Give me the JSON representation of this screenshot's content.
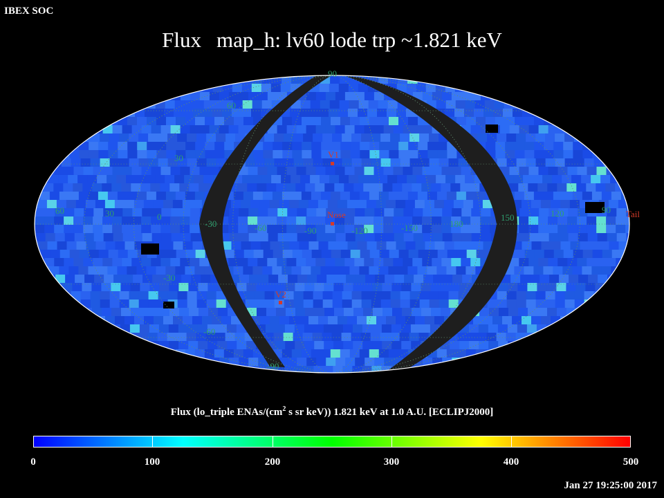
{
  "header": {
    "corner_label": "IBEX SOC",
    "title_part1": "Flux",
    "title_part2": "map_h: lv60 lode trp ~1.821 keV"
  },
  "map": {
    "projection": "Mollweide (ecliptic J2000)",
    "longitude_labels": [
      "60",
      "30",
      "0",
      "-30",
      "-60",
      "-90",
      "-120",
      "-150",
      "180",
      "150",
      "120",
      "90"
    ],
    "latitude_labels": [
      "90",
      "60",
      "30",
      "-30",
      "-60",
      "-90"
    ],
    "markers": [
      {
        "name": "V1",
        "color": "#d43a2a"
      },
      {
        "name": "Nose",
        "color": "#d43a2a"
      },
      {
        "name": "V2",
        "color": "#d43a2a"
      },
      {
        "name": "Tail",
        "color": "#d43a2a"
      }
    ],
    "no_data_color": "#1e1e1e",
    "grid_color": "#5f8f6f"
  },
  "colorbar": {
    "title_pre": "Flux (lo_triple ENAs/(cm",
    "title_sup": "2",
    "title_post": " s sr keV))  1.821 keV at 1.0 A.U. [ECLIPJ2000]",
    "ticks": [
      "0",
      "100",
      "200",
      "300",
      "400",
      "500"
    ],
    "range": [
      0,
      500
    ],
    "colors": [
      "#0000ff",
      "#00ffff",
      "#00ff00",
      "#ffff00",
      "#ff0000"
    ]
  },
  "footer": {
    "timestamp": "Jan 27 19:25:00 2017"
  }
}
